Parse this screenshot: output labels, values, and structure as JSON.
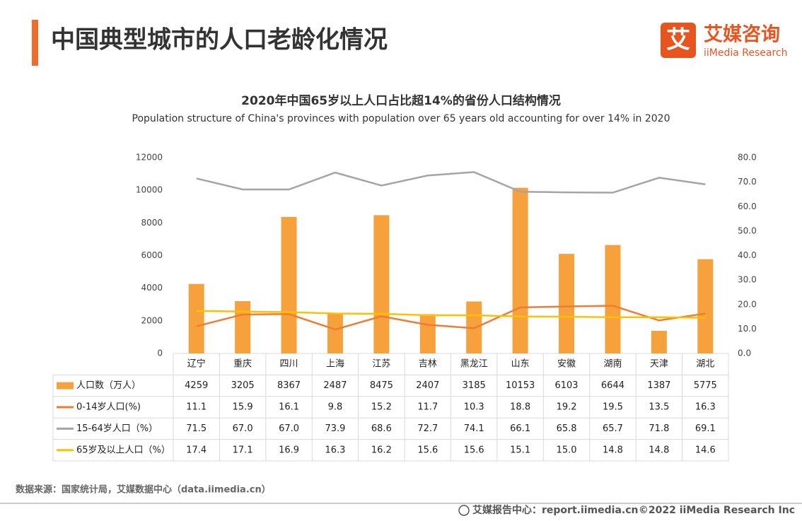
{
  "header": {
    "title": "中国典型城市的人口老龄化情况",
    "logo_mark": "艾",
    "logo_cn": "艾媒咨询",
    "logo_en": "iiMedia Research"
  },
  "chart_data": {
    "type": "bar",
    "title": "2020年中国65岁以上人口占比超14%的省份人口结构情况",
    "subtitle": "Population structure of China's provinces with population over 65 years old accounting for over 14% in 2020",
    "categories": [
      "辽宁",
      "重庆",
      "四川",
      "上海",
      "江苏",
      "吉林",
      "黑龙江",
      "山东",
      "安徽",
      "湖南",
      "天津",
      "湖北"
    ],
    "ylim": [
      0,
      12000
    ],
    "yticks": [
      0,
      2000,
      4000,
      6000,
      8000,
      10000,
      12000
    ],
    "y2lim": [
      0,
      80
    ],
    "y2ticks": [
      {
        "value": 0,
        "label": "0.0"
      },
      {
        "value": 10,
        "label": "10.0"
      },
      {
        "value": 20,
        "label": "20.0"
      },
      {
        "value": 30,
        "label": "30.0"
      },
      {
        "value": 40,
        "label": "40.0"
      },
      {
        "value": 50,
        "label": "50.0"
      },
      {
        "value": 60,
        "label": "60.0"
      },
      {
        "value": 70,
        "label": "70.0"
      },
      {
        "value": 80,
        "label": "80.0"
      }
    ],
    "series": [
      {
        "name": "人口数（万人）",
        "type": "bar",
        "color": "#f7a13d",
        "values": [
          4259,
          3205,
          8367,
          2487,
          8475,
          2407,
          3185,
          10153,
          6103,
          6644,
          1387,
          5775
        ]
      },
      {
        "name": "0-14岁人口(%)",
        "type": "line",
        "axis": "y2",
        "color": "#ed7d31",
        "values": [
          11.1,
          15.9,
          16.1,
          9.8,
          15.2,
          11.7,
          10.3,
          18.8,
          19.2,
          19.5,
          13.5,
          16.3
        ]
      },
      {
        "name": "15-64岁人口（%）",
        "type": "line",
        "axis": "y2",
        "color": "#a5a5a5",
        "values": [
          71.5,
          67,
          67,
          73.9,
          68.6,
          72.7,
          74.1,
          66.1,
          65.8,
          65.7,
          71.8,
          69.1
        ],
        "value_labels": [
          "71.5",
          "67.0",
          "67.0",
          "73.9",
          "68.6",
          "72.7",
          "74.1",
          "66.1",
          "65.8",
          "65.7",
          "71.8",
          "69.1"
        ]
      },
      {
        "name": "65岁及以上人口（%）",
        "type": "line",
        "axis": "y2",
        "color": "#ffc000",
        "values": [
          17.4,
          17.1,
          16.9,
          16.3,
          16.2,
          15.6,
          15.6,
          15.1,
          15,
          14.8,
          14.8,
          14.6
        ],
        "value_labels": [
          "17.4",
          "17.1",
          "16.9",
          "16.3",
          "16.2",
          "15.6",
          "15.6",
          "15.1",
          "15.0",
          "14.8",
          "14.8",
          "14.6"
        ]
      }
    ]
  },
  "footer": {
    "source": "数据来源：国家统计局，艾媒数据中心（data.iimedia.cn）",
    "site": "艾媒报告中心：report.iimedia.cn",
    "copyright": "©2022  iiMedia Research  Inc"
  }
}
